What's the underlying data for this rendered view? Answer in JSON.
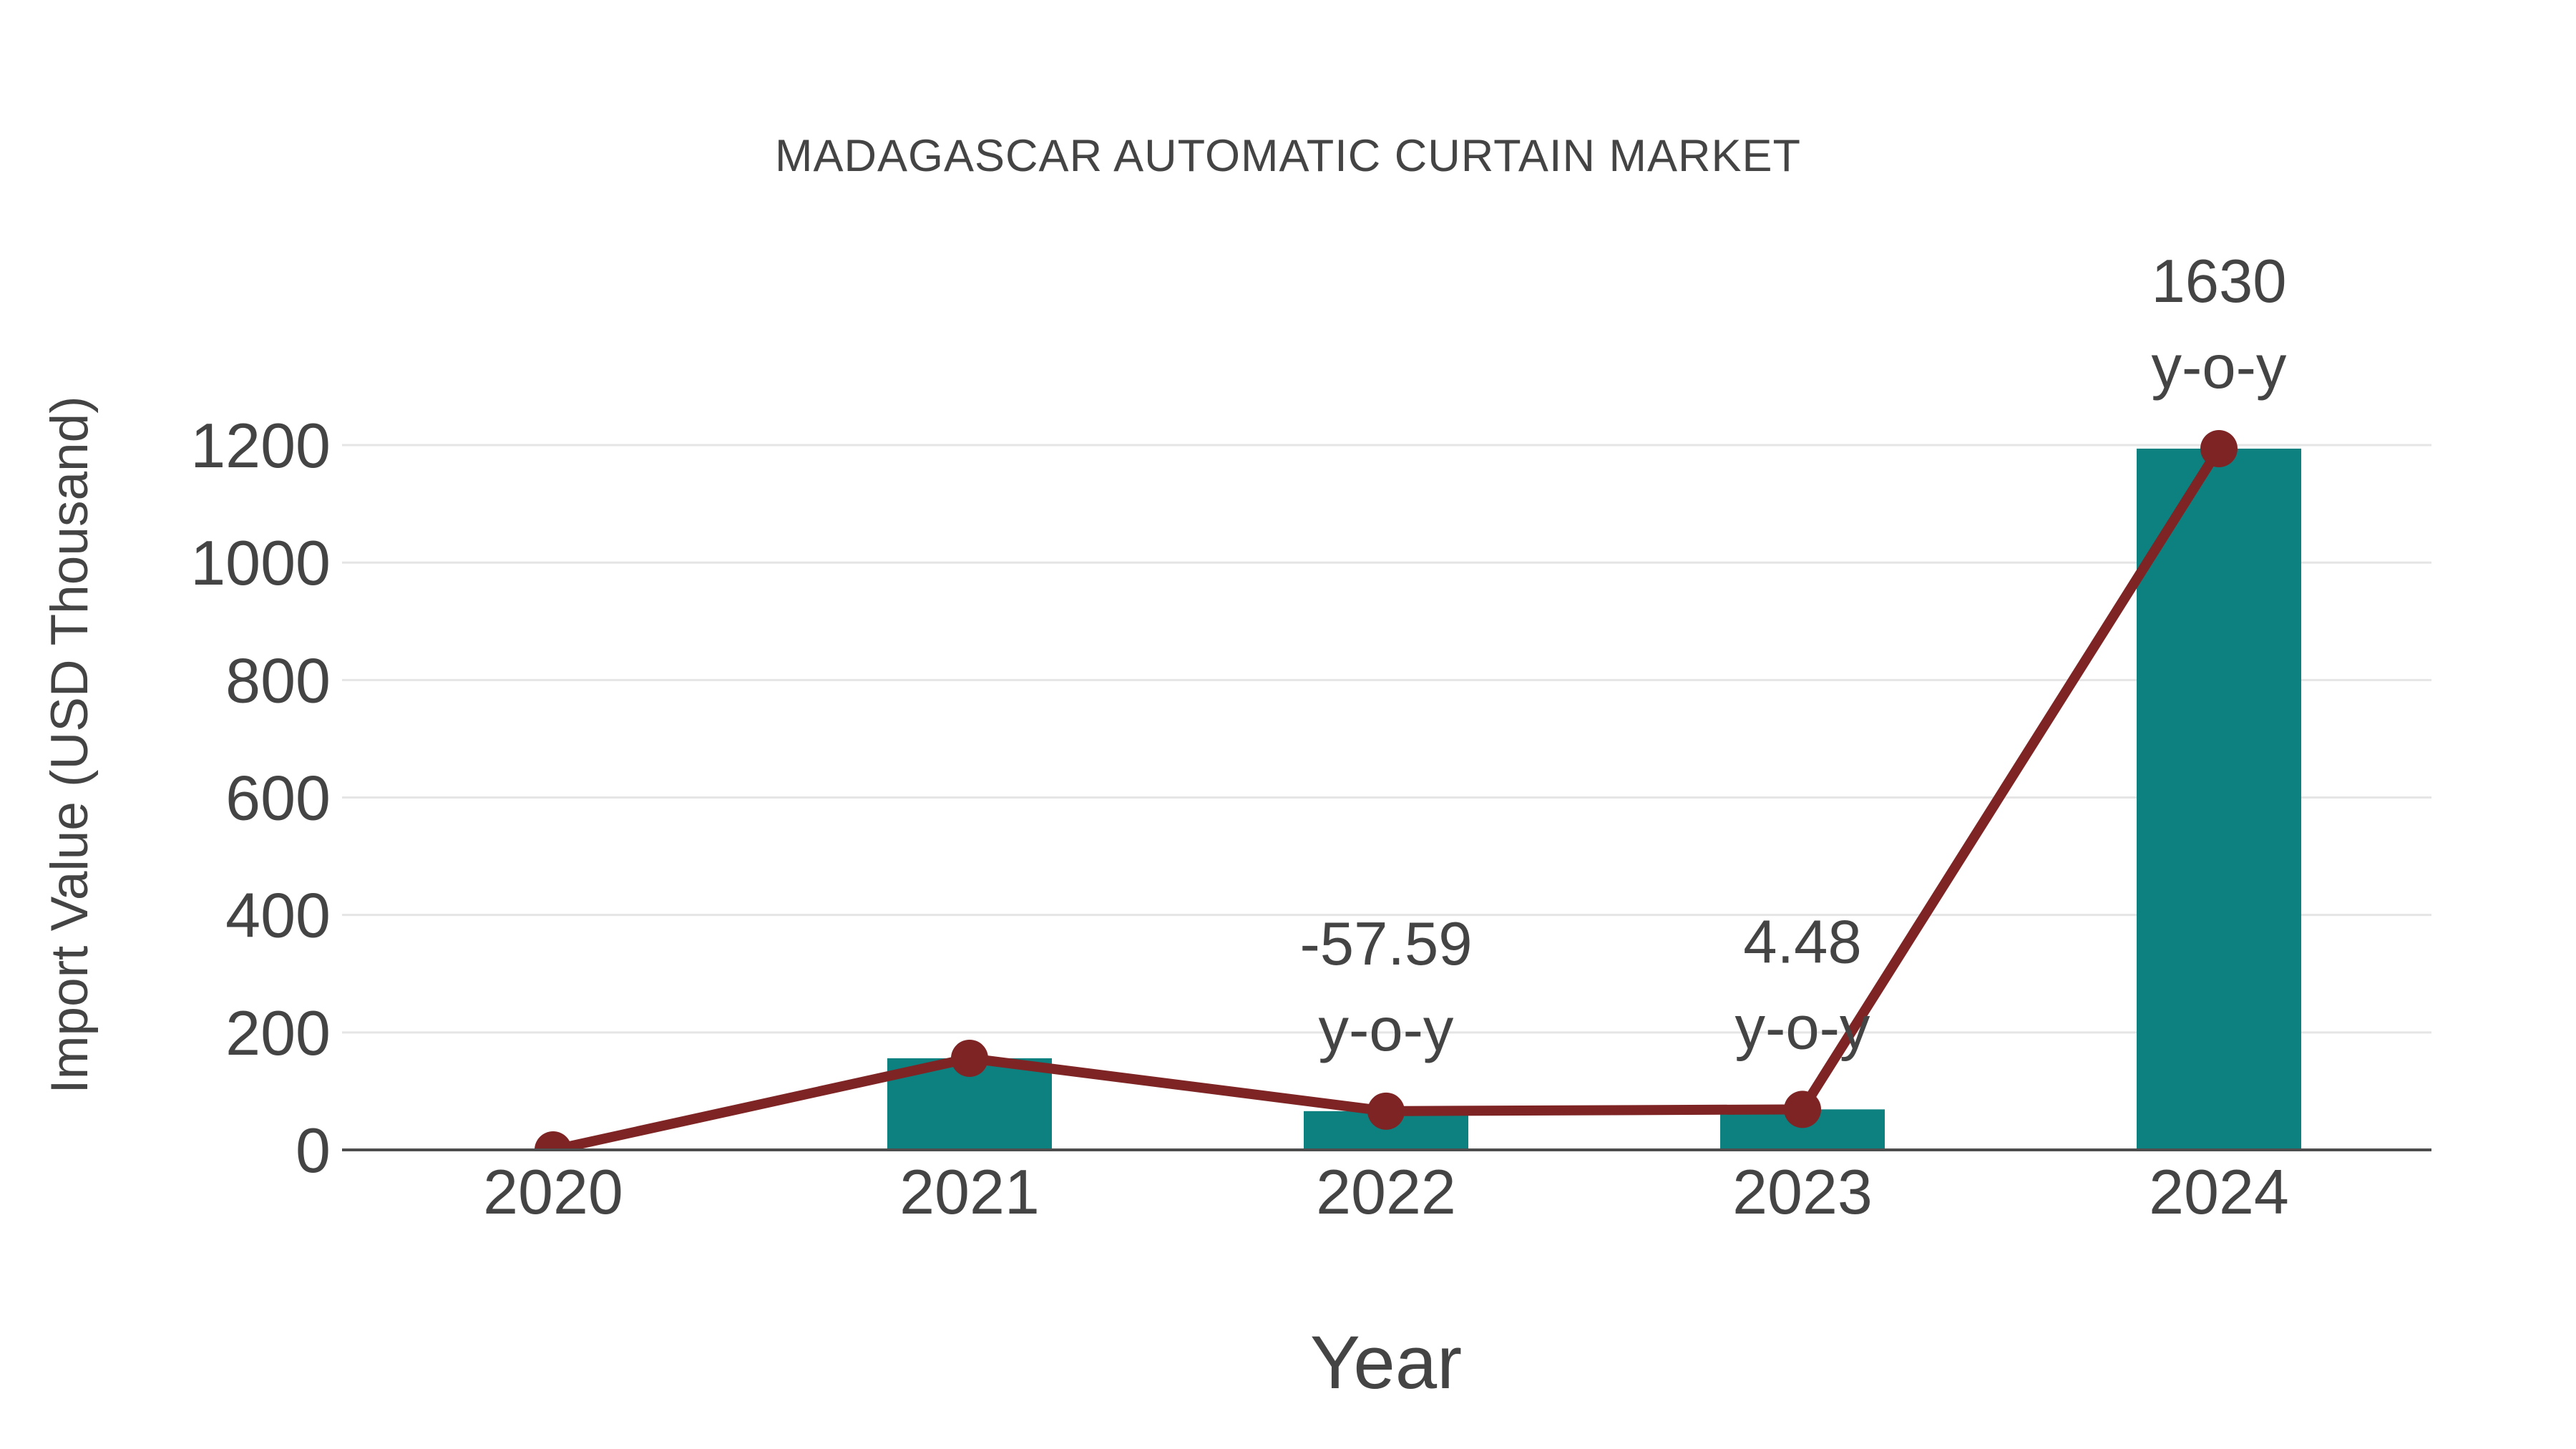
{
  "title": "MADAGASCAR AUTOMATIC CURTAIN MARKET",
  "chart_data": {
    "type": "bar+line",
    "title": "MADAGASCAR AUTOMATIC CURTAIN MARKET",
    "categories": [
      "2020",
      "2021",
      "2022",
      "2023",
      "2024"
    ],
    "series": [
      {
        "name": "Import Value bars",
        "type": "bar",
        "color": "#0d8180",
        "values": [
          0,
          156,
          66,
          69,
          1194
        ]
      },
      {
        "name": "Import Value trend line",
        "type": "line",
        "color": "#7e2424",
        "values": [
          0,
          156,
          66,
          69,
          1194
        ]
      }
    ],
    "annotations": [
      {
        "category": "2022",
        "value": "-57.59",
        "suffix": "y-o-y"
      },
      {
        "category": "2023",
        "value": "4.48",
        "suffix": "y-o-y"
      },
      {
        "category": "2024",
        "value": "1630",
        "suffix": "y-o-y"
      }
    ],
    "xlabel": "Year",
    "ylabel": "Import Value (USD Thousand)",
    "yticks": [
      0,
      200,
      400,
      600,
      800,
      1000,
      1200
    ],
    "ylim": [
      0,
      1240
    ],
    "grid": true,
    "legend": "none"
  },
  "colors": {
    "bar": "#0d8180",
    "line": "#7e2424",
    "marker": "#7e2424",
    "grid": "#e5e5e5",
    "axis": "#4d4d4d",
    "text": "#444444",
    "background": "#ffffff"
  }
}
